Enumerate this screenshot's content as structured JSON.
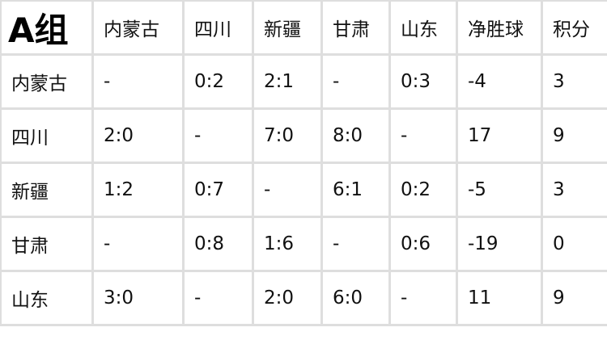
{
  "title": "A组",
  "headers": [
    "内蒙古",
    "四川",
    "新疆",
    "甘肃",
    "山东",
    "净胜球",
    "积分"
  ],
  "rows": [
    {
      "team": "内蒙古",
      "cells": [
        "-",
        "0:2",
        "2:1",
        "-",
        "0:3",
        "-4",
        "3"
      ]
    },
    {
      "team": "四川",
      "cells": [
        "2:0",
        "-",
        "7:0",
        "8:0",
        "-",
        "17",
        "9"
      ]
    },
    {
      "team": "新疆",
      "cells": [
        "1:2",
        "0:7",
        "-",
        "6:1",
        "0:2",
        "-5",
        "3"
      ]
    },
    {
      "team": "甘肃",
      "cells": [
        "-",
        "0:8",
        "1:6",
        "-",
        "0:6",
        "-19",
        "0"
      ]
    },
    {
      "team": "山东",
      "cells": [
        "3:0",
        "-",
        "2:0",
        "6:0",
        "-",
        "11",
        "9"
      ]
    }
  ]
}
